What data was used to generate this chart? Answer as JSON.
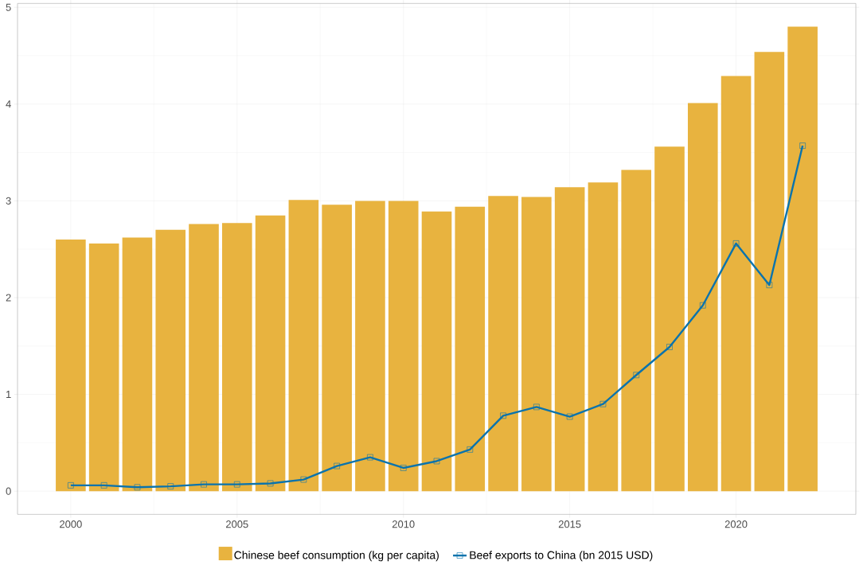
{
  "chart_data": {
    "type": "bar",
    "x": [
      2000,
      2001,
      2002,
      2003,
      2004,
      2005,
      2006,
      2007,
      2008,
      2009,
      2010,
      2011,
      2012,
      2013,
      2014,
      2015,
      2016,
      2017,
      2018,
      2019,
      2020,
      2021,
      2022
    ],
    "series": [
      {
        "name": "Chinese beef consumption (kg per capita)",
        "color": "#e8b33f",
        "values": [
          2.6,
          2.56,
          2.62,
          2.7,
          2.76,
          2.77,
          2.85,
          3.01,
          2.96,
          3.0,
          3.0,
          2.89,
          2.94,
          3.05,
          3.04,
          3.14,
          3.19,
          3.32,
          3.56,
          4.01,
          4.29,
          4.54,
          4.8
        ]
      },
      {
        "name": "Beef exports to China (bn 2015 USD)",
        "type": "line",
        "color": "#0a73ad",
        "marker": "square",
        "values": [
          0.06,
          0.06,
          0.04,
          0.05,
          0.07,
          0.07,
          0.08,
          0.12,
          0.26,
          0.35,
          0.24,
          0.31,
          0.43,
          0.78,
          0.87,
          0.77,
          0.9,
          1.2,
          1.49,
          1.92,
          2.56,
          2.13,
          3.57
        ]
      }
    ],
    "xlim": [
      1998.4,
      2023.6
    ],
    "xticks": [
      2000,
      2005,
      2010,
      2015,
      2020
    ],
    "ylim": [
      -0.24,
      5.04
    ],
    "yticks": [
      0,
      1,
      2,
      3,
      4,
      5
    ],
    "grid": true,
    "legend": "bottom"
  }
}
